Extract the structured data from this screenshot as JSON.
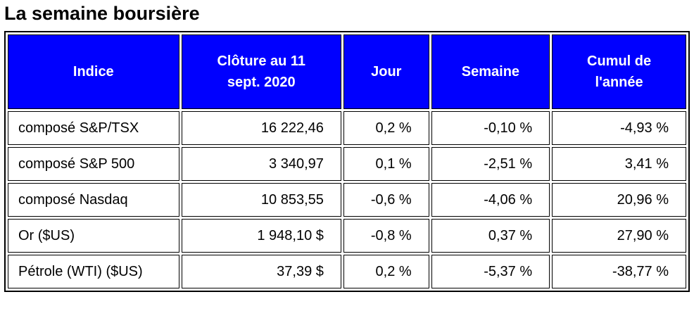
{
  "header": {
    "title": "La semaine boursière"
  },
  "table": {
    "columns": [
      "Indice",
      "Clôture au 11 sept. 2020",
      "Jour",
      "Semaine",
      "Cumul de l'année"
    ],
    "rows": [
      [
        "composé S&P/TSX",
        "16 222,46",
        "0,2 %",
        "-0,10 %",
        "-4,93 %"
      ],
      [
        "composé S&P 500",
        "3 340,97",
        "0,1 %",
        "-2,51 %",
        "3,41 %"
      ],
      [
        "composé Nasdaq",
        "10 853,55",
        "-0,6 %",
        "-4,06 %",
        "20,96 %"
      ],
      [
        "Or ($US)",
        "1 948,10 $",
        "-0,8 %",
        "0,37 %",
        "27,90 %"
      ],
      [
        "Pétrole (WTI) ($US)",
        "37,39 $",
        "0,2 %",
        "-5,37 %",
        "-38,77 %"
      ]
    ]
  }
}
